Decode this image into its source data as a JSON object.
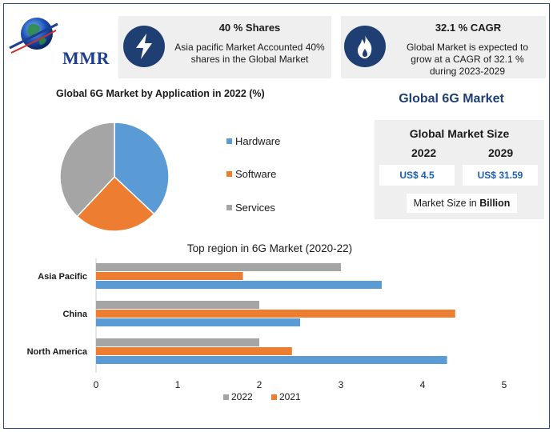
{
  "brand": {
    "logo_text": "MMR",
    "globe_icon": "globe-icon"
  },
  "cards": [
    {
      "icon": "lightning-icon",
      "title": "40 % Shares",
      "text_lines": [
        "Asia pacific Market Accounted 40%",
        "shares in the Global Market"
      ]
    },
    {
      "icon": "flame-icon",
      "title": "32.1 % CAGR",
      "text_lines": [
        "Global Market is expected to",
        "grow at a CAGR of 32.1 %",
        "during 2023-2029"
      ]
    }
  ],
  "market": {
    "title": "Global 6G Market",
    "size_title": "Global Market Size",
    "year_a": "2022",
    "year_b": "2029",
    "value_a": "US$ 4.5",
    "value_b": "US$ 31.59",
    "unit_prefix": "Market Size in ",
    "unit_bold": "Billion"
  },
  "colors": {
    "hardware": "#5b9bd5",
    "software": "#ed7d31",
    "services": "#a5a5a5",
    "navy": "#1f3f73"
  },
  "chart_data": [
    {
      "type": "pie",
      "title": "Global 6G Market by Application in 2022 (%)",
      "labels": [
        "Hardware",
        "Software",
        "Services"
      ],
      "values": [
        37,
        25,
        38
      ],
      "colors": [
        "#5b9bd5",
        "#ed7d31",
        "#a5a5a5"
      ],
      "legend_position": "right"
    },
    {
      "type": "bar",
      "orientation": "horizontal",
      "title": "Top region in 6G Market (2020-22)",
      "categories": [
        "Asia Pacific",
        "China",
        "North America"
      ],
      "series": [
        {
          "name": "2022",
          "color": "#a5a5a5",
          "values": [
            3.0,
            2.0,
            2.0
          ]
        },
        {
          "name": "2021",
          "color": "#ed7d31",
          "values": [
            1.8,
            4.4,
            2.4
          ]
        },
        {
          "name": "",
          "color": "#5b9bd5",
          "values": [
            3.5,
            2.5,
            4.3
          ]
        }
      ],
      "xlim": [
        0,
        5
      ],
      "xticks": [
        0,
        1,
        2,
        3,
        4,
        5
      ],
      "grid": false,
      "legend_position": "bottom"
    }
  ]
}
